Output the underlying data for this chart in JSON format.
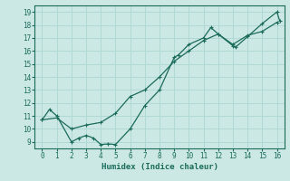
{
  "xlabel": "Humidex (Indice chaleur)",
  "bg_color": "#cce8e4",
  "grid_color": "#b0d8d4",
  "line_color": "#1a6b5a",
  "xlim": [
    -0.5,
    16.5
  ],
  "ylim": [
    8.5,
    19.5
  ],
  "xticks": [
    0,
    1,
    2,
    3,
    4,
    5,
    6,
    7,
    8,
    9,
    10,
    11,
    12,
    13,
    14,
    15,
    16
  ],
  "yticks": [
    9,
    10,
    11,
    12,
    13,
    14,
    15,
    16,
    17,
    18,
    19
  ],
  "curve1_x": [
    0,
    0.5,
    1,
    2,
    2.5,
    3,
    3.5,
    4,
    4.5,
    5,
    6,
    7,
    8,
    9,
    9.3,
    10,
    11,
    11.5,
    12,
    13,
    13.2,
    14,
    15,
    16,
    16.2
  ],
  "curve1_y": [
    10.7,
    11.5,
    11.0,
    9.0,
    9.3,
    9.5,
    9.3,
    8.8,
    8.85,
    8.8,
    10.0,
    11.8,
    13.0,
    15.5,
    15.7,
    16.5,
    17.0,
    17.8,
    17.3,
    16.4,
    16.3,
    17.1,
    18.1,
    19.0,
    18.3
  ],
  "curve2_x": [
    0,
    1,
    2,
    3,
    4,
    5,
    6,
    7,
    8,
    9,
    10,
    11,
    12,
    13,
    14,
    15,
    16
  ],
  "curve2_y": [
    10.7,
    10.85,
    10.0,
    10.3,
    10.5,
    11.2,
    12.5,
    13.0,
    14.0,
    15.2,
    16.0,
    16.8,
    17.3,
    16.5,
    17.2,
    17.5,
    18.2
  ]
}
